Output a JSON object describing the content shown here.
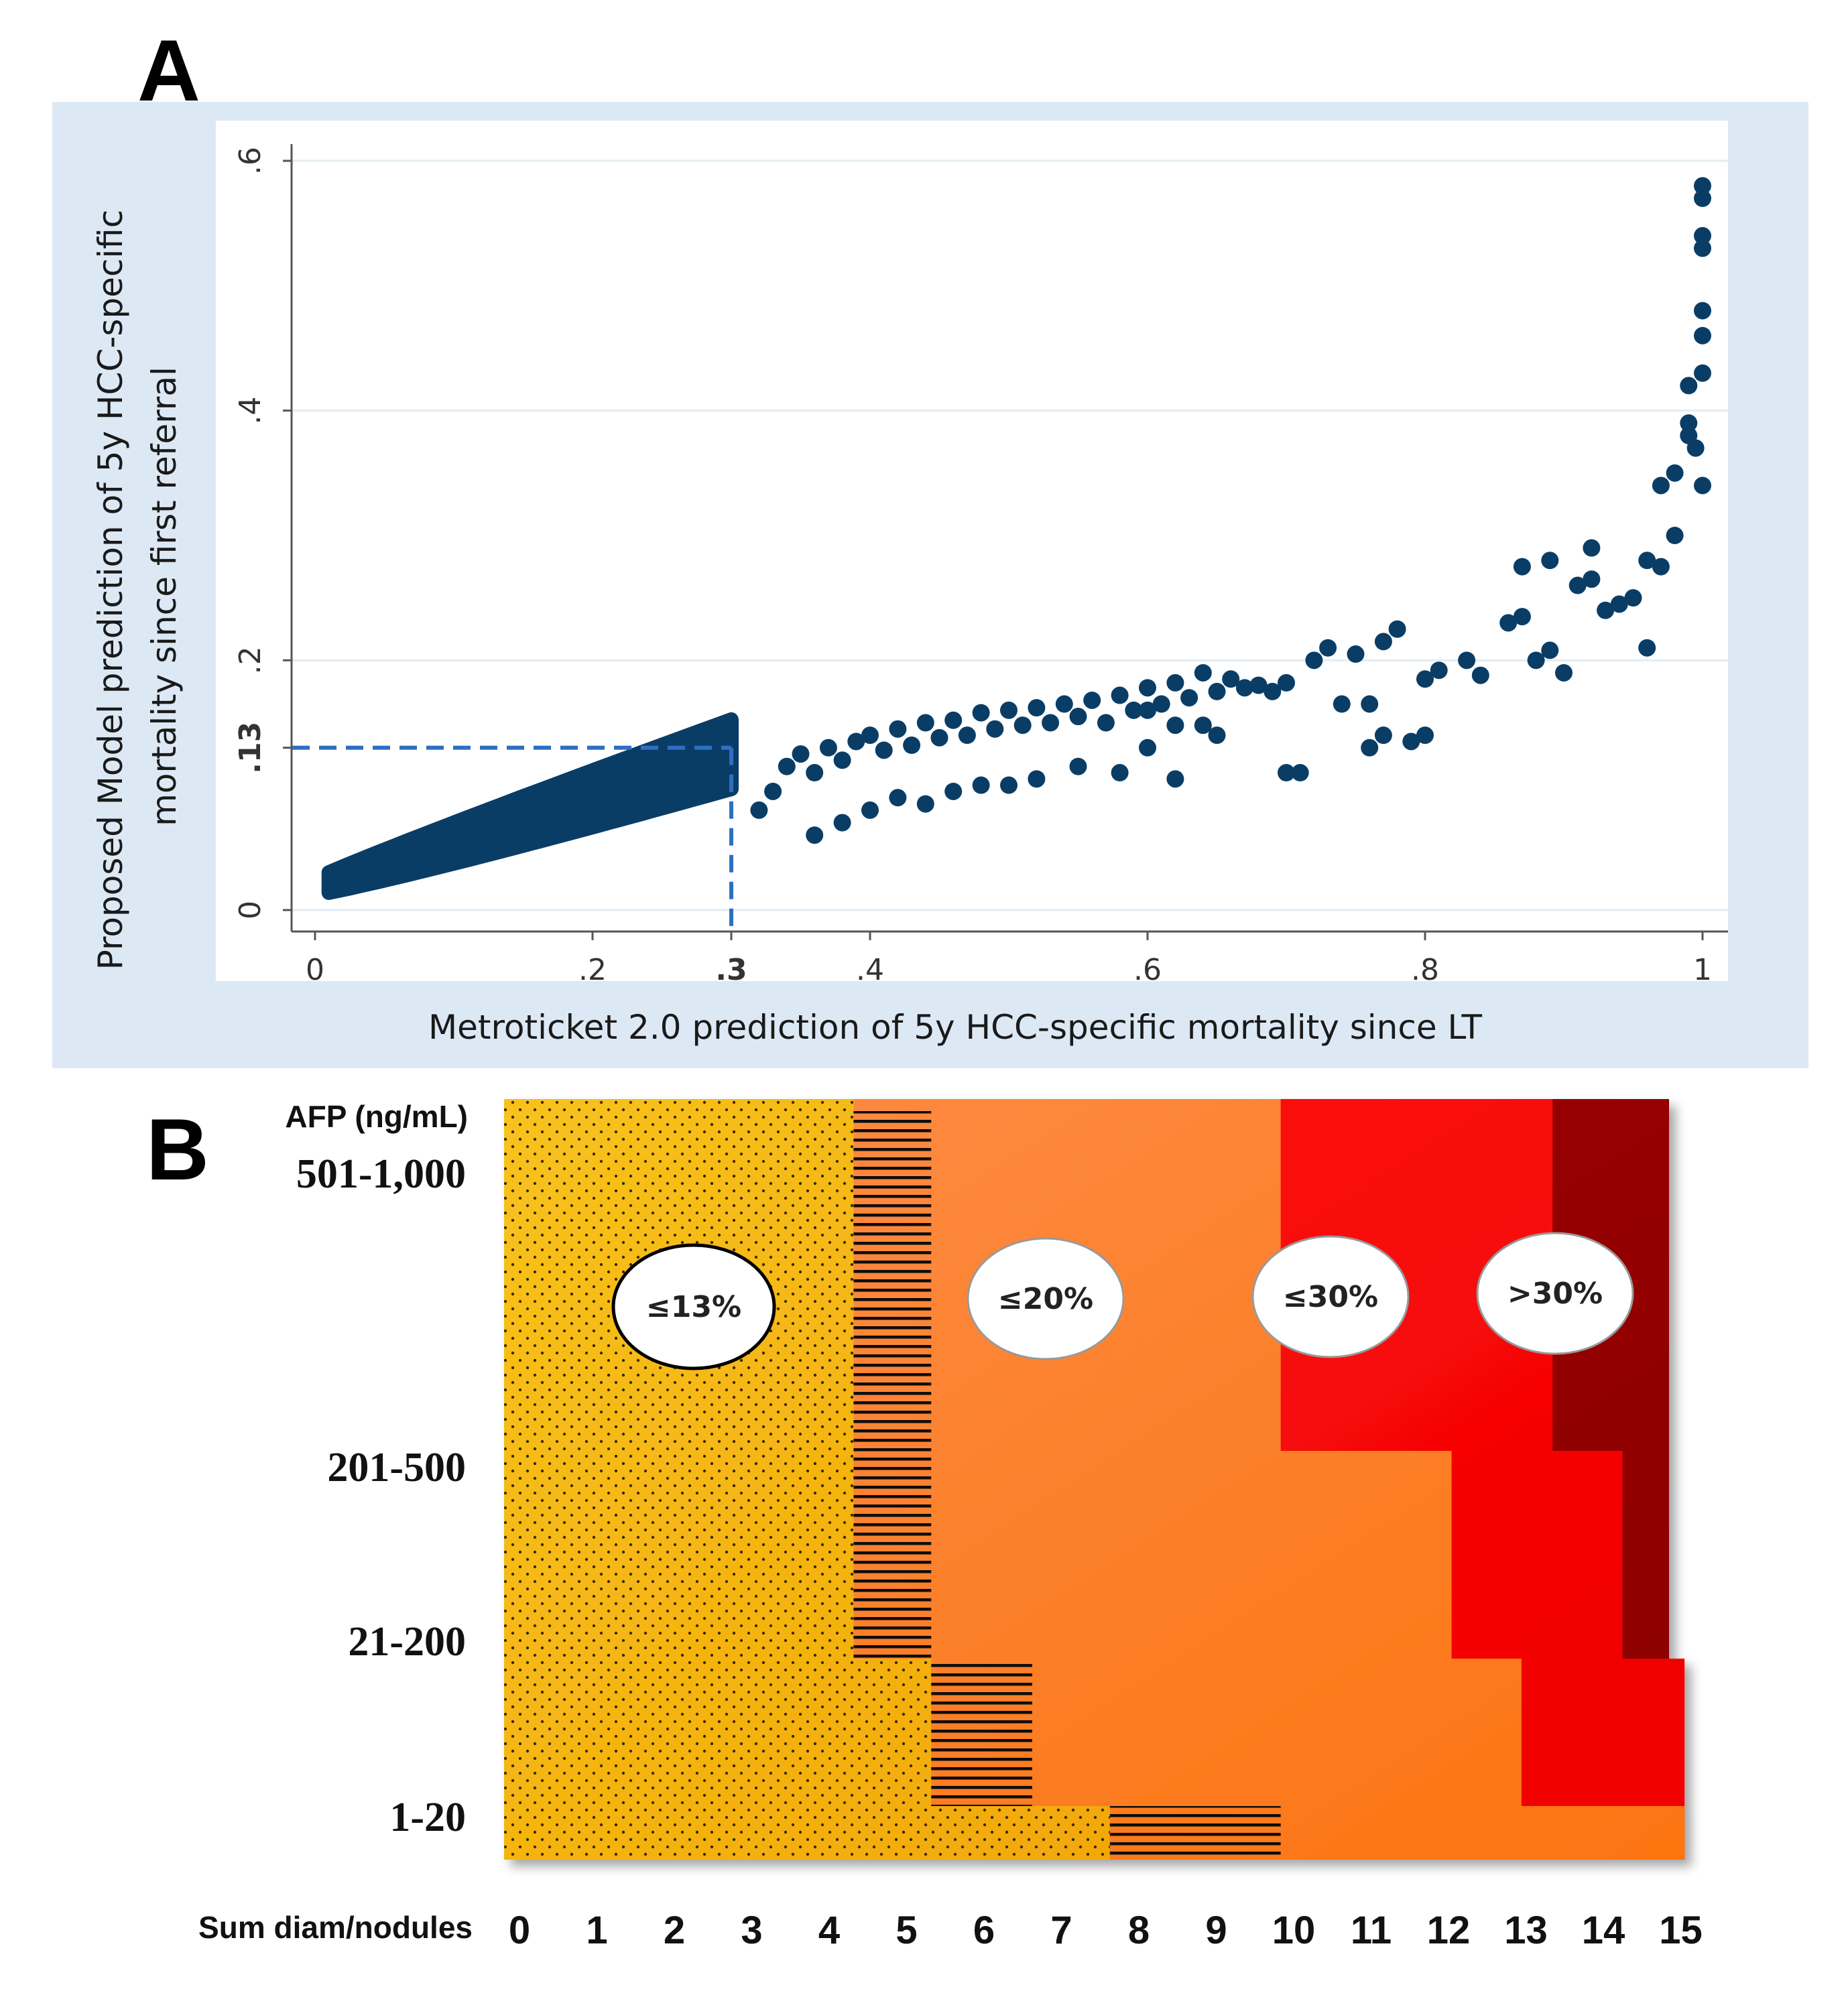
{
  "chart_data": [
    {
      "panel": "A",
      "type": "scatter",
      "xlabel": "Metroticket 2.0 prediction of 5y HCC-specific mortality since LT",
      "ylabel_line1": "Proposed Model  prediction of 5y HCC-specific",
      "ylabel_line2": "mortality since first referral",
      "xlim": [
        0,
        1
      ],
      "ylim": [
        0,
        0.6
      ],
      "xticks": [
        {
          "value": 0,
          "label": "0"
        },
        {
          "value": 0.2,
          "label": ".2"
        },
        {
          "value": 0.3,
          "label": ".3"
        },
        {
          "value": 0.4,
          "label": ".4"
        },
        {
          "value": 0.6,
          "label": ".6"
        },
        {
          "value": 0.8,
          "label": ".8"
        },
        {
          "value": 1,
          "label": "1"
        }
      ],
      "yticks": [
        {
          "value": 0,
          "label": "0"
        },
        {
          "value": 0.13,
          "label": ".13"
        },
        {
          "value": 0.2,
          "label": ".2"
        },
        {
          "value": 0.4,
          "label": ".4"
        },
        {
          "value": 0.6,
          "label": ".6"
        }
      ],
      "reference_point": {
        "x": 0.3,
        "y": 0.13
      },
      "grid": true,
      "marker_color": "#0a3d66",
      "dense_band": {
        "x_min": 0.01,
        "x_max": 0.3,
        "lower_fn": "0.012 + 0.32*x^1.1",
        "upper_fn": "0.025 + 0.40*x^0.95"
      },
      "points": [
        [
          0.34,
          0.115
        ],
        [
          0.35,
          0.125
        ],
        [
          0.36,
          0.11
        ],
        [
          0.37,
          0.13
        ],
        [
          0.38,
          0.12
        ],
        [
          0.39,
          0.135
        ],
        [
          0.4,
          0.14
        ],
        [
          0.41,
          0.128
        ],
        [
          0.42,
          0.145
        ],
        [
          0.43,
          0.132
        ],
        [
          0.44,
          0.15
        ],
        [
          0.45,
          0.138
        ],
        [
          0.46,
          0.152
        ],
        [
          0.47,
          0.14
        ],
        [
          0.48,
          0.158
        ],
        [
          0.49,
          0.145
        ],
        [
          0.5,
          0.16
        ],
        [
          0.51,
          0.148
        ],
        [
          0.52,
          0.162
        ],
        [
          0.53,
          0.15
        ],
        [
          0.54,
          0.165
        ],
        [
          0.55,
          0.155
        ],
        [
          0.56,
          0.168
        ],
        [
          0.57,
          0.15
        ],
        [
          0.58,
          0.172
        ],
        [
          0.59,
          0.16
        ],
        [
          0.6,
          0.178
        ],
        [
          0.61,
          0.165
        ],
        [
          0.62,
          0.182
        ],
        [
          0.63,
          0.17
        ],
        [
          0.64,
          0.19
        ],
        [
          0.65,
          0.175
        ],
        [
          0.66,
          0.185
        ],
        [
          0.67,
          0.178
        ],
        [
          0.68,
          0.18
        ],
        [
          0.69,
          0.175
        ],
        [
          0.7,
          0.182
        ],
        [
          0.32,
          0.08
        ],
        [
          0.33,
          0.095
        ],
        [
          0.36,
          0.06
        ],
        [
          0.38,
          0.07
        ],
        [
          0.4,
          0.08
        ],
        [
          0.42,
          0.09
        ],
        [
          0.44,
          0.085
        ],
        [
          0.46,
          0.095
        ],
        [
          0.48,
          0.1
        ],
        [
          0.5,
          0.1
        ],
        [
          0.52,
          0.105
        ],
        [
          0.55,
          0.115
        ],
        [
          0.58,
          0.11
        ],
        [
          0.6,
          0.13
        ],
        [
          0.62,
          0.105
        ],
        [
          0.65,
          0.14
        ],
        [
          0.7,
          0.11
        ],
        [
          0.72,
          0.2
        ],
        [
          0.73,
          0.21
        ],
        [
          0.75,
          0.205
        ],
        [
          0.77,
          0.215
        ],
        [
          0.78,
          0.225
        ],
        [
          0.8,
          0.185
        ],
        [
          0.81,
          0.192
        ],
        [
          0.83,
          0.2
        ],
        [
          0.84,
          0.188
        ],
        [
          0.86,
          0.23
        ],
        [
          0.87,
          0.235
        ],
        [
          0.88,
          0.2
        ],
        [
          0.89,
          0.208
        ],
        [
          0.9,
          0.19
        ],
        [
          0.91,
          0.26
        ],
        [
          0.92,
          0.265
        ],
        [
          0.93,
          0.24
        ],
        [
          0.94,
          0.245
        ],
        [
          0.95,
          0.25
        ],
        [
          0.96,
          0.28
        ],
        [
          0.97,
          0.275
        ],
        [
          0.98,
          0.3
        ],
        [
          0.96,
          0.21
        ],
        [
          0.87,
          0.275
        ],
        [
          0.89,
          0.28
        ],
        [
          0.92,
          0.29
        ],
        [
          0.98,
          0.35
        ],
        [
          0.99,
          0.38
        ],
        [
          0.99,
          0.42
        ],
        [
          1,
          0.43
        ],
        [
          1,
          0.46
        ],
        [
          1,
          0.48
        ],
        [
          1,
          0.53
        ],
        [
          1,
          0.54
        ],
        [
          1,
          0.57
        ],
        [
          1,
          0.58
        ],
        [
          1,
          0.34
        ],
        [
          0.995,
          0.37
        ],
        [
          0.99,
          0.39
        ],
        [
          0.97,
          0.34
        ],
        [
          0.76,
          0.13
        ],
        [
          0.77,
          0.14
        ],
        [
          0.79,
          0.135
        ],
        [
          0.8,
          0.14
        ],
        [
          0.76,
          0.165
        ],
        [
          0.74,
          0.165
        ],
        [
          0.71,
          0.11
        ],
        [
          0.64,
          0.148
        ],
        [
          0.6,
          0.16
        ],
        [
          0.62,
          0.148
        ]
      ]
    },
    {
      "panel": "B",
      "type": "heatmap",
      "y_header": "AFP (ng/mL)",
      "row_labels": [
        "501-1,000",
        "201-500",
        "21-200",
        "1-20"
      ],
      "x_header": "Sum diam/nodules",
      "col_labels": [
        "0",
        "1",
        "2",
        "3",
        "4",
        "5",
        "6",
        "7",
        "8",
        "9",
        "10",
        "11",
        "12",
        "13",
        "14",
        "15"
      ],
      "categories": [
        {
          "label": "≤13%",
          "color": "#f5b30c"
        },
        {
          "label": "≤20%",
          "color": "#fb7a1e"
        },
        {
          "label": "≤30%",
          "color": "#fd0808"
        },
        {
          "label": ">30%",
          "color": "#960000"
        }
      ],
      "boundaries": [
        {
          "name": "≤13% upper limit (sum diam)",
          "by_row": [
            4.5,
            4.5,
            5.5,
            7.8
          ]
        },
        {
          "name": "≤20% upper limit (sum diam)",
          "by_row": [
            10,
            12.2,
            13.1,
            15.2
          ]
        },
        {
          "name": "≤30% upper limit (sum diam)",
          "by_row": [
            13.5,
            14.4,
            15.2,
            15.2
          ]
        }
      ]
    }
  ],
  "panels": {
    "a_letter": "A",
    "b_letter": "B"
  }
}
